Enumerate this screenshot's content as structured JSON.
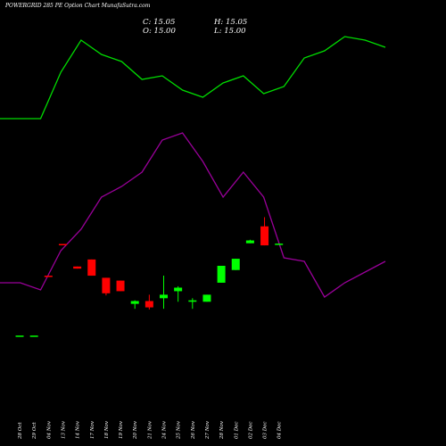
{
  "header": {
    "title": "POWERGRID 285 PE Option Chart MunafaSutra.com",
    "close": "C: 15.05",
    "open": "O: 15.00",
    "high": "H: 15.05",
    "low": "L: 15.00"
  },
  "colors": {
    "background": "#000000",
    "up_candle": "#00ff00",
    "down_candle": "#ff0000",
    "green_line": "#00dd00",
    "purple_line": "#990099",
    "text": "#ffffff"
  },
  "chart_data": {
    "type": "candlestick",
    "x_tick_labels": [
      "28 Oct",
      "29 Oct",
      "04 Nov",
      "13 Nov",
      "14 Nov",
      "17 Nov",
      "18 Nov",
      "19 Nov",
      "20 Nov",
      "21 Nov",
      "24 Nov",
      "25 Nov",
      "26 Nov",
      "27 Nov",
      "28 Nov",
      "01 Dec",
      "02 Dec",
      "03 Dec",
      "04 Dec"
    ],
    "candles": [
      {
        "date": "28 Oct",
        "open": 2.0,
        "high": 2.0,
        "low": 2.0,
        "close": 2.0,
        "dir": "up"
      },
      {
        "date": "29 Oct",
        "open": 2.0,
        "high": 2.0,
        "low": 2.0,
        "close": 2.0,
        "dir": "up"
      },
      {
        "date": "04 Nov",
        "open": 10.5,
        "high": 10.5,
        "low": 10.5,
        "close": 10.5,
        "dir": "down"
      },
      {
        "date": "13 Nov",
        "open": 15.0,
        "high": 15.0,
        "low": 15.0,
        "close": 15.0,
        "dir": "down"
      },
      {
        "date": "14 Nov",
        "open": 11.8,
        "high": 11.8,
        "low": 11.5,
        "close": 11.5,
        "dir": "down"
      },
      {
        "date": "17 Nov",
        "open": 12.8,
        "high": 12.8,
        "low": 10.5,
        "close": 10.5,
        "dir": "down"
      },
      {
        "date": "18 Nov",
        "open": 10.2,
        "high": 10.2,
        "low": 7.7,
        "close": 8.0,
        "dir": "down"
      },
      {
        "date": "19 Nov",
        "open": 9.8,
        "high": 9.8,
        "low": 8.3,
        "close": 8.3,
        "dir": "down"
      },
      {
        "date": "20 Nov",
        "open": 6.5,
        "high": 7.0,
        "low": 5.8,
        "close": 6.9,
        "dir": "up"
      },
      {
        "date": "21 Nov",
        "open": 6.9,
        "high": 7.8,
        "low": 5.7,
        "close": 6.0,
        "dir": "down"
      },
      {
        "date": "24 Nov",
        "open": 7.3,
        "high": 10.5,
        "low": 5.8,
        "close": 7.8,
        "dir": "up"
      },
      {
        "date": "25 Nov",
        "open": 8.3,
        "high": 9.0,
        "low": 6.8,
        "close": 8.8,
        "dir": "up"
      },
      {
        "date": "26 Nov",
        "open": 6.8,
        "high": 7.3,
        "low": 5.8,
        "close": 7.0,
        "dir": "up"
      },
      {
        "date": "27 Nov",
        "open": 6.8,
        "high": 7.8,
        "low": 6.8,
        "close": 7.8,
        "dir": "up"
      },
      {
        "date": "28 Nov",
        "open": 9.5,
        "high": 11.9,
        "low": 9.5,
        "close": 11.9,
        "dir": "up"
      },
      {
        "date": "01 Dec",
        "open": 11.3,
        "high": 12.9,
        "low": 11.3,
        "close": 12.9,
        "dir": "up"
      },
      {
        "date": "02 Dec",
        "open": 15.1,
        "high": 15.6,
        "low": 15.1,
        "close": 15.5,
        "dir": "up"
      },
      {
        "date": "03 Dec",
        "open": 17.5,
        "high": 18.8,
        "low": 14.8,
        "close": 14.8,
        "dir": "down"
      },
      {
        "date": "04 Dec",
        "open": 15.0,
        "high": 15.05,
        "low": 15.0,
        "close": 15.05,
        "dir": "up"
      }
    ],
    "green_line": [
      88,
      88,
      88,
      101,
      110,
      106,
      104,
      99,
      100,
      96,
      94,
      98,
      100,
      95,
      97,
      105,
      107,
      111,
      110,
      108
    ],
    "purple_line": [
      42,
      42,
      40,
      51,
      57,
      66,
      69,
      73,
      82,
      84,
      76,
      66,
      73,
      66,
      49,
      48,
      38,
      42,
      45,
      48
    ],
    "ylim": [
      -9,
      30
    ]
  }
}
